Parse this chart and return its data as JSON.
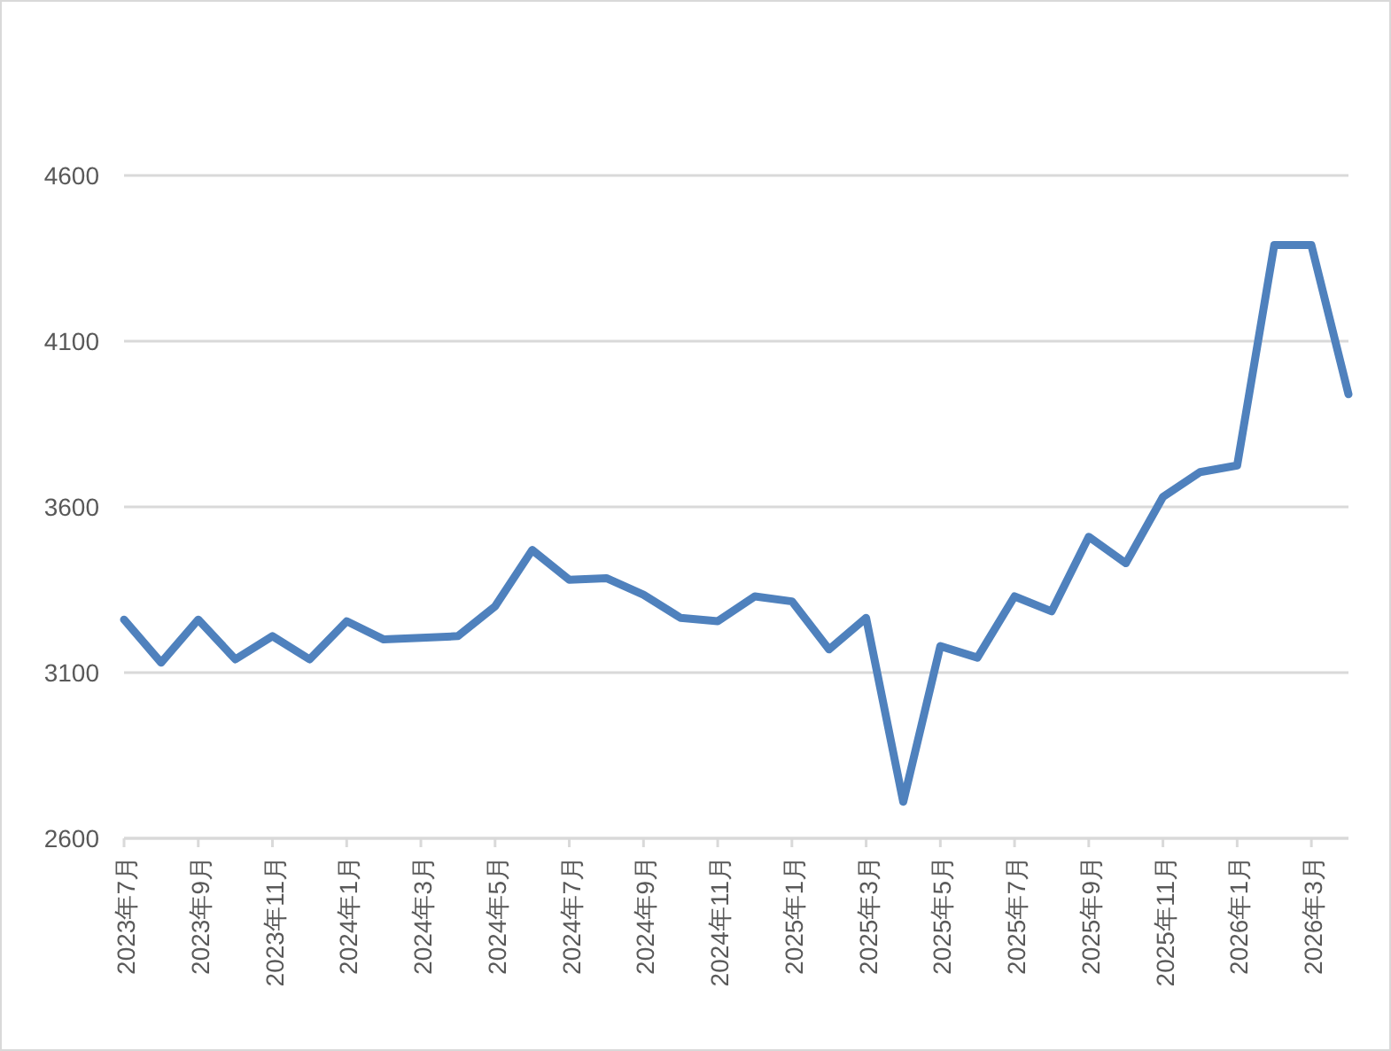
{
  "chart_data": {
    "type": "line",
    "categories": [
      "2023年7月",
      null,
      "2023年9月",
      null,
      "2023年11月",
      null,
      "2024年1月",
      null,
      "2024年3月",
      null,
      "2024年5月",
      null,
      "2024年7月",
      null,
      "2024年9月",
      null,
      "2024年11月",
      null,
      "2025年1月",
      null,
      "2025年3月",
      null,
      "2025年5月",
      null,
      "2025年7月",
      null,
      "2025年9月",
      null,
      "2025年11月",
      null,
      "2026年1月",
      null,
      "2026年3月",
      null
    ],
    "series": [
      {
        "color": "#4f81bd",
        "values": [
          3260,
          3130,
          3260,
          3140,
          3210,
          3140,
          3255,
          3200,
          3205,
          3210,
          3300,
          3470,
          3380,
          3385,
          3335,
          3265,
          3255,
          3330,
          3315,
          3170,
          3265,
          2710,
          3180,
          3145,
          3330,
          3285,
          3510,
          3430,
          3630,
          3705,
          3725,
          4390,
          4390,
          3940
        ]
      }
    ],
    "ylim": [
      2600,
      4600
    ],
    "yticks": [
      2600,
      3100,
      3600,
      4100,
      4600
    ],
    "grid": "y"
  }
}
